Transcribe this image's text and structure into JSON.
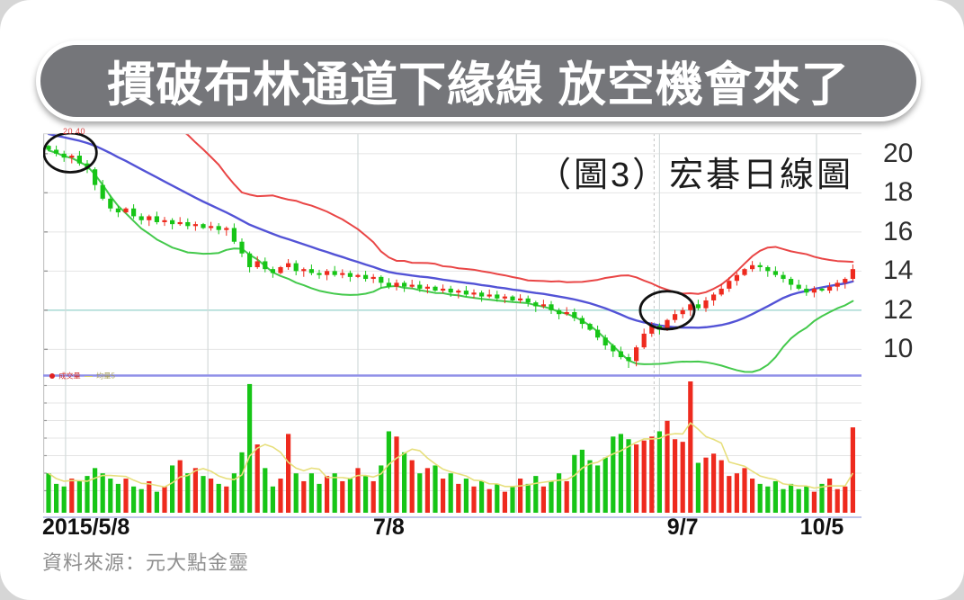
{
  "banner": {
    "title": "摜破布林通道下緣線  放空機會來了"
  },
  "figure": {
    "label": "（圖3）宏碁日線圖",
    "source": "資料來源：元大點金靈",
    "corner_price_label": "20.40"
  },
  "legend": {
    "volume_label": "成交量",
    "avg_volume_label": "均量5"
  },
  "colors": {
    "banner_bg": "#75767a",
    "candle_up": "#ee2a1e",
    "candle_down": "#17c517",
    "boll_upper": "#e94545",
    "boll_middle": "#5353d6",
    "boll_lower": "#44c94c",
    "volume_avg_line": "#e7df7c",
    "grid": "#e4e4e4",
    "grid_vertical": "#d3dada",
    "teal_gridline": "#aedcd6",
    "panel_separator": "#8f8fe8",
    "annotation": "#111111"
  },
  "chart_data": {
    "type": "candlestick",
    "title": "（圖3）宏碁日線圖",
    "panels": [
      "price",
      "volume"
    ],
    "y_ticks": [
      10,
      12,
      14,
      16,
      18,
      20
    ],
    "y_range": [
      8.7,
      21.05
    ],
    "x_tick_labels": [
      {
        "label": "2015/5/8",
        "day": 0,
        "align": "left"
      },
      {
        "label": "7/8",
        "day": 44,
        "align": "center"
      },
      {
        "label": "9/7",
        "day": 82,
        "align": "center"
      },
      {
        "label": "10/5",
        "day": 100,
        "align": "center"
      }
    ],
    "vertical_grid_days": [
      2.2,
      20.6,
      40,
      60.5,
      79,
      99.3
    ],
    "dashed_crosshair_day": 78.3,
    "teal_line_price": 12,
    "bollinger_period": 20,
    "close": [
      20.2,
      20.0,
      19.8,
      19.9,
      19.5,
      19.2,
      18.4,
      17.7,
      17.2,
      17.0,
      17.2,
      16.8,
      16.6,
      16.8,
      16.5,
      16.6,
      16.4,
      16.5,
      16.3,
      16.4,
      16.2,
      16.3,
      16.1,
      16.2,
      15.5,
      14.9,
      14.2,
      14.5,
      14.1,
      13.9,
      14.2,
      14.4,
      14.0,
      14.1,
      13.9,
      13.8,
      14.0,
      13.8,
      13.9,
      13.7,
      13.8,
      13.6,
      13.7,
      13.4,
      13.2,
      13.4,
      13.2,
      13.3,
      13.1,
      13.2,
      13.0,
      13.1,
      12.9,
      13.0,
      12.8,
      12.9,
      12.7,
      12.8,
      12.6,
      12.7,
      12.5,
      12.6,
      12.4,
      12.2,
      12.3,
      12.0,
      11.8,
      11.9,
      11.6,
      11.3,
      11.0,
      10.6,
      10.2,
      9.9,
      9.6,
      9.4,
      10.1,
      10.8,
      11.2,
      11.0,
      11.5,
      11.8,
      12.0,
      12.3,
      12.1,
      12.5,
      12.8,
      13.1,
      13.5,
      13.8,
      14.1,
      14.3,
      14.2,
      14.0,
      13.8,
      13.6,
      13.3,
      13.1,
      12.9,
      13.1,
      13.0,
      13.2,
      13.4,
      13.6,
      14.1
    ],
    "volume": [
      30,
      22,
      20,
      26,
      24,
      28,
      34,
      30,
      26,
      22,
      26,
      20,
      18,
      24,
      16,
      20,
      36,
      40,
      30,
      34,
      28,
      26,
      22,
      20,
      30,
      46,
      98,
      52,
      34,
      20,
      26,
      60,
      30,
      24,
      30,
      22,
      28,
      30,
      24,
      26,
      34,
      28,
      24,
      36,
      62,
      58,
      46,
      40,
      30,
      34,
      36,
      26,
      30,
      22,
      26,
      20,
      24,
      18,
      22,
      16,
      20,
      26,
      22,
      28,
      20,
      24,
      30,
      24,
      44,
      48,
      40,
      36,
      42,
      58,
      60,
      56,
      52,
      55,
      58,
      62,
      70,
      56,
      54,
      100,
      38,
      42,
      45,
      40,
      28,
      30,
      34,
      26,
      22,
      20,
      24,
      18,
      22,
      18,
      20,
      16,
      22,
      26,
      18,
      20,
      65
    ],
    "crash_low_day": 75,
    "crash_low_price": 9.05,
    "annotations": [
      {
        "type": "ellipse",
        "day": 2.8,
        "price": 20.05,
        "rx_days": 3.4,
        "ry_price": 1.0,
        "meaning": "start of downtrend at upper area"
      },
      {
        "type": "ellipse",
        "day": 80.0,
        "price": 12.0,
        "rx_days": 3.5,
        "ry_price": 0.97,
        "meaning": "rebound candles crossing middle band near 9/7"
      }
    ]
  }
}
